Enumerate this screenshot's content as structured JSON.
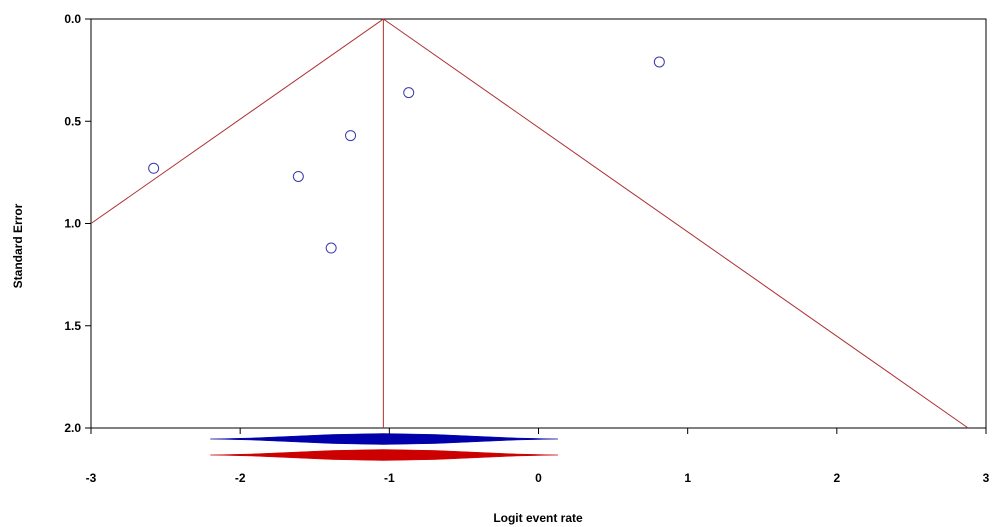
{
  "chart_data": {
    "type": "scatter",
    "title": "",
    "xlabel": "Logit event rate",
    "ylabel": "Standard Error",
    "xlim": [
      -3,
      3
    ],
    "ylim": [
      0,
      2
    ],
    "y_inverted": true,
    "xticks": [
      -3,
      -2,
      -1,
      0,
      1,
      2,
      3
    ],
    "xtick_labels": [
      "-3",
      "-2",
      "-1",
      "0",
      "1",
      "2",
      "3"
    ],
    "yticks": [
      0,
      0.5,
      1,
      1.5,
      2
    ],
    "ytick_labels": [
      "0.0",
      "0.5",
      "1.0",
      "1.5",
      "2.0"
    ],
    "grid": false,
    "points": [
      {
        "x": -2.58,
        "y": 0.73
      },
      {
        "x": -1.61,
        "y": 0.77
      },
      {
        "x": -1.39,
        "y": 1.12
      },
      {
        "x": -1.26,
        "y": 0.57
      },
      {
        "x": -0.87,
        "y": 0.36
      },
      {
        "x": 0.81,
        "y": 0.21
      }
    ],
    "summary_estimate": -1.04,
    "funnel_limit_se": 2.0,
    "diamonds": [
      {
        "center": -1.04,
        "lower": -2.2,
        "upper": 0.13,
        "color": "#0000aa"
      },
      {
        "center": -1.04,
        "lower": -2.2,
        "upper": 0.13,
        "color": "#cc0000"
      }
    ],
    "colors": {
      "points": "#3a3aa8",
      "funnel": "#b03030",
      "frame": "#000000"
    }
  }
}
